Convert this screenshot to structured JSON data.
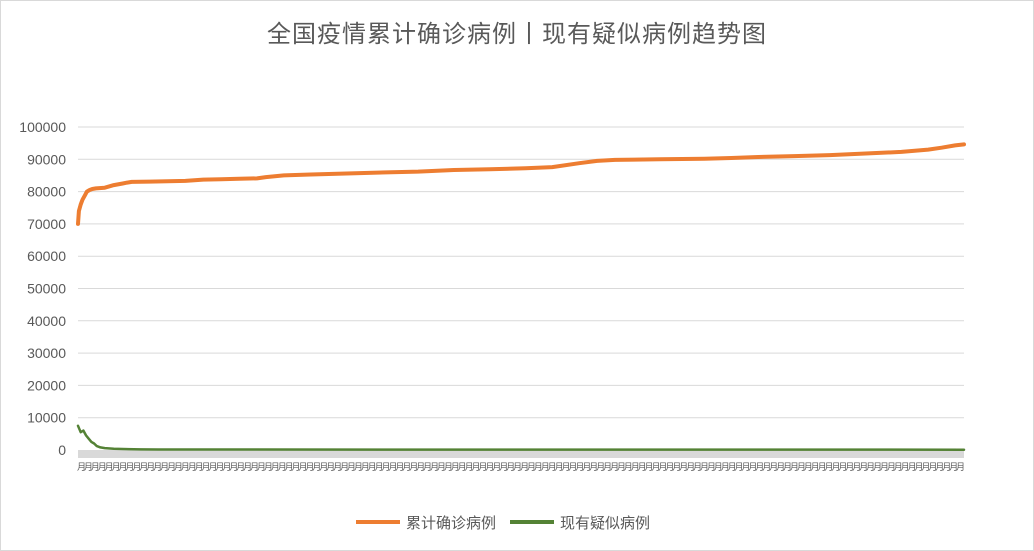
{
  "chart_data": {
    "type": "line",
    "title": "全国疫情累计确诊病例丨现有疑似病例趋势图",
    "ylim": [
      0,
      100000
    ],
    "yticks": [
      0,
      10000,
      20000,
      30000,
      40000,
      50000,
      60000,
      70000,
      80000,
      90000,
      100000
    ],
    "grid": true,
    "legend_position": "bottom",
    "x_tick_char": "月",
    "series": [
      {
        "name": "累计确诊病例",
        "color": "#ED7D31",
        "points": [
          [
            0,
            70000
          ],
          [
            1,
            74000
          ],
          [
            3,
            76000
          ],
          [
            5,
            77500
          ],
          [
            8,
            79000
          ],
          [
            10,
            80000
          ],
          [
            13,
            80500
          ],
          [
            16,
            80800
          ],
          [
            20,
            81000
          ],
          [
            30,
            81200
          ],
          [
            40,
            82000
          ],
          [
            50,
            82500
          ],
          [
            55,
            82800
          ],
          [
            60,
            83000
          ],
          [
            80,
            83100
          ],
          [
            100,
            83200
          ],
          [
            120,
            83300
          ],
          [
            140,
            83700
          ],
          [
            160,
            83800
          ],
          [
            180,
            84000
          ],
          [
            200,
            84100
          ],
          [
            210,
            84500
          ],
          [
            230,
            85000
          ],
          [
            260,
            85300
          ],
          [
            300,
            85600
          ],
          [
            350,
            86000
          ],
          [
            380,
            86200
          ],
          [
            420,
            86700
          ],
          [
            460,
            86900
          ],
          [
            500,
            87200
          ],
          [
            530,
            87600
          ],
          [
            560,
            88800
          ],
          [
            580,
            89500
          ],
          [
            600,
            89800
          ],
          [
            650,
            90000
          ],
          [
            700,
            90200
          ],
          [
            730,
            90400
          ],
          [
            760,
            90700
          ],
          [
            800,
            91000
          ],
          [
            840,
            91300
          ],
          [
            880,
            91800
          ],
          [
            920,
            92300
          ],
          [
            950,
            93000
          ],
          [
            965,
            93600
          ],
          [
            980,
            94300
          ],
          [
            990,
            94600
          ]
        ]
      },
      {
        "name": "现有疑似病例",
        "color": "#548235",
        "points": [
          [
            0,
            7500
          ],
          [
            3,
            5500
          ],
          [
            6,
            6000
          ],
          [
            9,
            4500
          ],
          [
            12,
            3500
          ],
          [
            15,
            2500
          ],
          [
            18,
            2000
          ],
          [
            21,
            1200
          ],
          [
            25,
            800
          ],
          [
            30,
            600
          ],
          [
            40,
            400
          ],
          [
            50,
            300
          ],
          [
            70,
            200
          ],
          [
            90,
            160
          ],
          [
            200,
            140
          ],
          [
            400,
            130
          ],
          [
            600,
            120
          ],
          [
            800,
            110
          ],
          [
            990,
            100
          ]
        ]
      }
    ]
  }
}
